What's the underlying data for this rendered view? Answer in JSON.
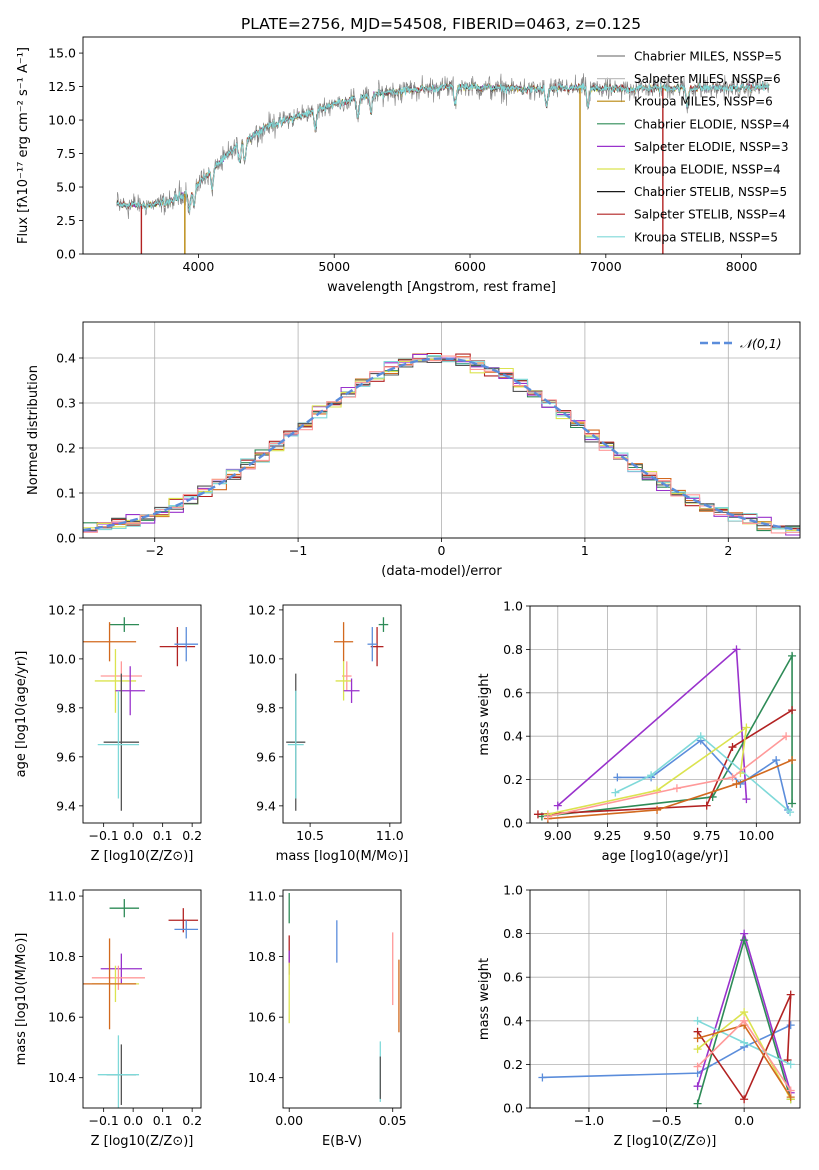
{
  "chart_data": [
    {
      "type": "line",
      "title": "PLATE=2756, MJD=54508, FIBERID=0463, z=0.125",
      "xlabel": "wavelength [Angstrom, rest frame]",
      "ylabel": "Flux [fλ10⁻¹⁷ erg cm⁻² s⁻¹ A⁻¹]",
      "xlim": [
        3150,
        8430
      ],
      "ylim": [
        0,
        16.2
      ],
      "xticks": [
        "4000",
        "5000",
        "6000",
        "7000",
        "8000"
      ],
      "yticks": [
        "0.0",
        "2.5",
        "5.0",
        "7.5",
        "10.0",
        "12.5",
        "15.0"
      ],
      "spectrum_range": [
        3400,
        8200
      ],
      "spectrum_anchors": {
        "wavelength": [
          3400,
          3600,
          3800,
          3950,
          4100,
          4300,
          4500,
          4800,
          5000,
          5200,
          5400,
          5600,
          5900,
          6200,
          6500,
          6800,
          7100,
          7400,
          7700,
          8000,
          8200
        ],
        "flux": [
          3.7,
          3.6,
          3.9,
          4.8,
          6.3,
          8.2,
          9.5,
          10.5,
          11.2,
          11.7,
          12.1,
          12.3,
          12.5,
          12.4,
          12.3,
          12.4,
          12.3,
          12.4,
          12.4,
          12.4,
          12.5
        ]
      },
      "legend_position": "upper right",
      "series": [
        {
          "name": "Chabrier MILES, N_SSP=5",
          "color": "#808080"
        },
        {
          "name": "Salpeter MILES, N_SSP=6",
          "color": "#c0c0c0"
        },
        {
          "name": "Kroupa MILES, N_SSP=6",
          "color": "#b8860b"
        },
        {
          "name": "Chabrier ELODIE, N_SSP=4",
          "color": "#2e8b57"
        },
        {
          "name": "Salpeter ELODIE, N_SSP=3",
          "color": "#9932cc"
        },
        {
          "name": "Kroupa ELODIE, N_SSP=4",
          "color": "#dbe34f"
        },
        {
          "name": "Chabrier STELIB, N_SSP=5",
          "color": "#1a1a1a"
        },
        {
          "name": "Salpeter STELIB, N_SSP=4",
          "color": "#b22222"
        },
        {
          "name": "Kroupa STELIB, N_SSP=5",
          "color": "#7fd9d9"
        }
      ]
    },
    {
      "type": "line",
      "xlabel": "(data-model)/error",
      "ylabel": "Normed distribution",
      "xlim": [
        -2.5,
        2.5
      ],
      "ylim": [
        0,
        0.48
      ],
      "xticks": [
        "−2",
        "−1",
        "0",
        "1",
        "2"
      ],
      "yticks": [
        "0.0",
        "0.1",
        "0.2",
        "0.3",
        "0.4"
      ],
      "legend": "N(0,1)",
      "bin_width": 0.1,
      "step_series_colors": [
        "#d2691e",
        "#2e8b57",
        "#b22222",
        "#9932cc",
        "#dbe34f",
        "#7fd9d9",
        "#555555",
        "#ff9999"
      ],
      "gauss_color": "#5b8ddb"
    },
    {
      "type": "scatter",
      "xlabel": "Z [log10(Z/Z⊙)]",
      "ylabel": "age  [log10(age/yr)]",
      "xlim": [
        -0.17,
        0.23
      ],
      "ylim": [
        9.33,
        10.22
      ],
      "xticks": [
        -0.1,
        0.0,
        0.1,
        0.2
      ],
      "yticks": [
        9.4,
        9.6,
        9.8,
        10.0,
        10.2
      ],
      "points": [
        {
          "x": -0.03,
          "y": 10.14,
          "xerr": 0.05,
          "yerr": 0.03,
          "color": "#2e8b57"
        },
        {
          "x": -0.08,
          "y": 10.07,
          "xerr": 0.09,
          "yerr": 0.08,
          "color": "#d2691e"
        },
        {
          "x": 0.15,
          "y": 10.05,
          "xerr": 0.06,
          "yerr": 0.08,
          "color": "#b22222"
        },
        {
          "x": 0.18,
          "y": 10.06,
          "xerr": 0.04,
          "yerr": 0.07,
          "color": "#5b8ddb"
        },
        {
          "x": -0.04,
          "y": 9.93,
          "xerr": 0.07,
          "yerr": 0.06,
          "color": "#ff9999"
        },
        {
          "x": -0.06,
          "y": 9.91,
          "xerr": 0.07,
          "yerr": 0.13,
          "color": "#dbe34f"
        },
        {
          "x": -0.01,
          "y": 9.87,
          "xerr": 0.05,
          "yerr": 0.1,
          "color": "#9932cc"
        },
        {
          "x": -0.04,
          "y": 9.66,
          "xerr": 0.06,
          "yerr": 0.28,
          "color": "#555555"
        },
        {
          "x": -0.05,
          "y": 9.65,
          "xerr": 0.07,
          "yerr": 0.22,
          "color": "#7fd9d9"
        }
      ]
    },
    {
      "type": "scatter",
      "xlabel": "mass [log10(M/M⊙)]",
      "ylabel": "",
      "xlim": [
        10.33,
        11.07
      ],
      "ylim": [
        9.33,
        10.22
      ],
      "xticks": [
        10.5,
        11.0
      ],
      "yticks": [
        9.4,
        9.6,
        9.8,
        10.0,
        10.2
      ],
      "points": [
        {
          "x": 10.96,
          "y": 10.14,
          "xerr": 0.03,
          "yerr": 0.03,
          "color": "#2e8b57"
        },
        {
          "x": 10.71,
          "y": 10.07,
          "xerr": 0.06,
          "yerr": 0.08,
          "color": "#d2691e"
        },
        {
          "x": 10.92,
          "y": 10.05,
          "xerr": 0.04,
          "yerr": 0.08,
          "color": "#b22222"
        },
        {
          "x": 10.89,
          "y": 10.06,
          "xerr": 0.03,
          "yerr": 0.07,
          "color": "#5b8ddb"
        },
        {
          "x": 10.73,
          "y": 9.93,
          "xerr": 0.03,
          "yerr": 0.06,
          "color": "#ff9999"
        },
        {
          "x": 10.71,
          "y": 9.91,
          "xerr": 0.05,
          "yerr": 0.08,
          "color": "#dbe34f"
        },
        {
          "x": 10.76,
          "y": 9.87,
          "xerr": 0.05,
          "yerr": 0.05,
          "color": "#9932cc"
        },
        {
          "x": 10.41,
          "y": 9.66,
          "xerr": 0.06,
          "yerr": 0.28,
          "color": "#555555"
        },
        {
          "x": 10.41,
          "y": 9.65,
          "xerr": 0.05,
          "yerr": 0.22,
          "color": "#7fd9d9"
        }
      ]
    },
    {
      "type": "line",
      "xlabel": "age  [log10(age/yr)]",
      "ylabel": "mass weight",
      "xlim": [
        8.86,
        10.22
      ],
      "ylim": [
        0,
        1.0
      ],
      "xticks": [
        "9.00",
        "9.25",
        "9.50",
        "9.75",
        "10.00"
      ],
      "yticks": [
        "0.0",
        "0.2",
        "0.4",
        "0.6",
        "0.8",
        "1.0"
      ],
      "series": [
        {
          "color": "#9932cc",
          "x": [
            9.0,
            9.9,
            9.95
          ],
          "y": [
            0.08,
            0.8,
            0.11
          ]
        },
        {
          "color": "#2e8b57",
          "x": [
            8.92,
            9.78,
            10.18,
            10.18
          ],
          "y": [
            0.03,
            0.12,
            0.77,
            0.09
          ]
        },
        {
          "color": "#b22222",
          "x": [
            8.9,
            9.75,
            9.88,
            10.18
          ],
          "y": [
            0.04,
            0.08,
            0.35,
            0.52
          ]
        },
        {
          "color": "#5b8ddb",
          "x": [
            9.3,
            9.47,
            9.72,
            9.92,
            10.1,
            10.16
          ],
          "y": [
            0.21,
            0.21,
            0.38,
            0.18,
            0.29,
            0.06
          ]
        },
        {
          "color": "#7fd9d9",
          "x": [
            9.29,
            9.47,
            9.72,
            10.17
          ],
          "y": [
            0.14,
            0.22,
            0.4,
            0.05
          ]
        },
        {
          "color": "#d2691e",
          "x": [
            8.95,
            9.5,
            9.9,
            10.18
          ],
          "y": [
            0.02,
            0.06,
            0.18,
            0.29
          ]
        },
        {
          "color": "#dbe34f",
          "x": [
            8.95,
            9.5,
            9.95,
            9.92
          ],
          "y": [
            0.04,
            0.15,
            0.44,
            0.23
          ]
        },
        {
          "color": "#ff9999",
          "x": [
            8.95,
            9.6,
            9.88,
            10.15
          ],
          "y": [
            0.03,
            0.16,
            0.21,
            0.4
          ]
        }
      ]
    },
    {
      "type": "scatter",
      "xlabel": "Z [log10(Z/Z⊙)]",
      "ylabel": "mass [log10(M/M⊙)]",
      "xlim": [
        -0.17,
        0.23
      ],
      "ylim": [
        10.3,
        11.02
      ],
      "xticks": [
        -0.1,
        0.0,
        0.1,
        0.2
      ],
      "yticks": [
        10.4,
        10.6,
        10.8,
        11.0
      ],
      "points": [
        {
          "x": -0.03,
          "y": 10.96,
          "xerr": 0.05,
          "yerr": 0.03,
          "color": "#2e8b57"
        },
        {
          "x": 0.17,
          "y": 10.92,
          "xerr": 0.05,
          "yerr": 0.04,
          "color": "#b22222"
        },
        {
          "x": 0.18,
          "y": 10.89,
          "xerr": 0.04,
          "yerr": 0.03,
          "color": "#5b8ddb"
        },
        {
          "x": -0.04,
          "y": 10.76,
          "xerr": 0.07,
          "yerr": 0.05,
          "color": "#9932cc"
        },
        {
          "x": -0.05,
          "y": 10.73,
          "xerr": 0.09,
          "yerr": 0.04,
          "color": "#ff9999"
        },
        {
          "x": -0.06,
          "y": 10.71,
          "xerr": 0.08,
          "yerr": 0.06,
          "color": "#dbe34f"
        },
        {
          "x": -0.08,
          "y": 10.71,
          "xerr": 0.09,
          "yerr": 0.15,
          "color": "#d2691e"
        },
        {
          "x": -0.04,
          "y": 10.41,
          "xerr": 0.05,
          "yerr": 0.1,
          "color": "#555555"
        },
        {
          "x": -0.05,
          "y": 10.41,
          "xerr": 0.07,
          "yerr": 0.13,
          "color": "#7fd9d9"
        }
      ]
    },
    {
      "type": "scatter",
      "xlabel": "E(B-V)",
      "ylabel": "",
      "xlim": [
        -0.003,
        0.054
      ],
      "ylim": [
        10.3,
        11.02
      ],
      "xticks": [
        "0.00",
        "0.05"
      ],
      "yticks": [
        10.4,
        10.6,
        10.8,
        11.0
      ],
      "points": [
        {
          "x": 0.0,
          "y": 10.96,
          "yerr": 0.05,
          "color": "#2e8b57"
        },
        {
          "x": 0.0,
          "y": 10.82,
          "yerr": 0.05,
          "color": "#b22222"
        },
        {
          "x": 0.0,
          "y": 10.78,
          "yerr": 0.04,
          "color": "#9932cc"
        },
        {
          "x": 0.0,
          "y": 10.68,
          "yerr": 0.1,
          "color": "#dbe34f"
        },
        {
          "x": 0.023,
          "y": 10.85,
          "yerr": 0.07,
          "color": "#5b8ddb"
        },
        {
          "x": 0.05,
          "y": 10.76,
          "yerr": 0.12,
          "color": "#ff9999"
        },
        {
          "x": 0.053,
          "y": 10.67,
          "yerr": 0.12,
          "color": "#d2691e"
        },
        {
          "x": 0.044,
          "y": 10.42,
          "yerr": 0.1,
          "color": "#7fd9d9"
        },
        {
          "x": 0.044,
          "y": 10.4,
          "yerr": 0.07,
          "color": "#555555"
        }
      ]
    },
    {
      "type": "line",
      "xlabel": "Z [log10(Z/Z⊙)]",
      "ylabel": "mass weight",
      "xlim": [
        -1.38,
        0.36
      ],
      "ylim": [
        0,
        1.0
      ],
      "xticks": [
        "−1.0",
        "−0.5",
        "0.0"
      ],
      "yticks": [
        "0.0",
        "0.2",
        "0.4",
        "0.6",
        "0.8",
        "1.0"
      ],
      "series": [
        {
          "color": "#5b8ddb",
          "x": [
            -1.3,
            -0.3,
            0.0,
            0.3
          ],
          "y": [
            0.14,
            0.16,
            0.28,
            0.38
          ]
        },
        {
          "color": "#9932cc",
          "x": [
            -0.3,
            0.0,
            0.3
          ],
          "y": [
            0.1,
            0.8,
            0.07
          ]
        },
        {
          "color": "#2e8b57",
          "x": [
            -0.3,
            0.0,
            0.3
          ],
          "y": [
            0.02,
            0.77,
            0.04
          ]
        },
        {
          "color": "#b22222",
          "x": [
            -0.3,
            0.0,
            0.3,
            0.28
          ],
          "y": [
            0.35,
            0.04,
            0.52,
            0.22
          ]
        },
        {
          "color": "#7fd9d9",
          "x": [
            -0.3,
            0.0,
            0.3
          ],
          "y": [
            0.4,
            0.3,
            0.2
          ]
        },
        {
          "color": "#dbe34f",
          "x": [
            -0.3,
            0.0,
            0.3
          ],
          "y": [
            0.27,
            0.44,
            0.04
          ]
        },
        {
          "color": "#d2691e",
          "x": [
            -0.3,
            0.0,
            0.3
          ],
          "y": [
            0.32,
            0.38,
            0.05
          ]
        },
        {
          "color": "#ff9999",
          "x": [
            -0.3,
            0.0,
            0.3
          ],
          "y": [
            0.19,
            0.4,
            0.08
          ]
        }
      ]
    }
  ]
}
